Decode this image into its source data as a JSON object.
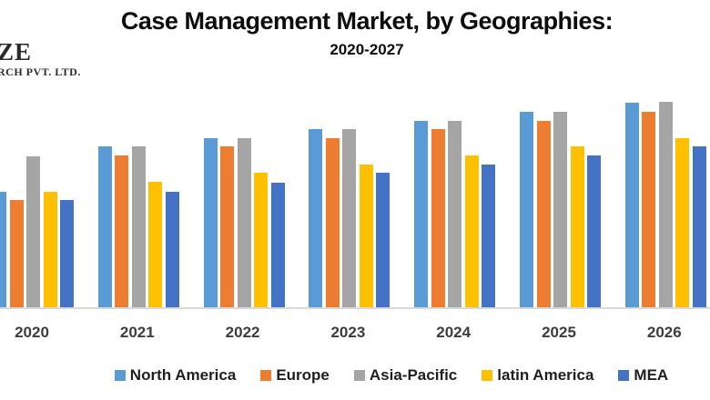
{
  "logo": {
    "line1": "ZE",
    "line2": "RCH PVT. LTD."
  },
  "header": {
    "title": "Case Management Market, by Geographies:",
    "subtitle": "2020-2027"
  },
  "colors": {
    "axis_line": "#d9d9d9",
    "title_text": "#0d0d0d",
    "axis_label_text": "#3d3d3d",
    "legend_text": "#1f1f1f",
    "background": "#ffffff"
  },
  "chart_data": {
    "type": "bar",
    "title": "Case Management Market, by Geographies:",
    "subtitle": "2020-2027",
    "categories": [
      "2020",
      "2021",
      "2022",
      "2023",
      "2024",
      "2025",
      "2026"
    ],
    "series": [
      {
        "name": "North America",
        "color": "#5B9BD5",
        "values": [
          127,
          177,
          186,
          196,
          205,
          215,
          225
        ]
      },
      {
        "name": "Europe",
        "color": "#ED7D31",
        "values": [
          118,
          167,
          177,
          186,
          196,
          205,
          215
        ]
      },
      {
        "name": "Asia-Pacific",
        "color": "#A5A5A5",
        "values": [
          166,
          177,
          186,
          196,
          205,
          215,
          226
        ]
      },
      {
        "name": "latin America",
        "color": "#FFC000",
        "values": [
          127,
          138,
          148,
          157,
          167,
          177,
          186
        ]
      },
      {
        "name": "MEA",
        "color": "#4472C4",
        "values": [
          118,
          127,
          137,
          148,
          157,
          167,
          177
        ]
      }
    ],
    "xlabel": "",
    "ylabel": "",
    "ylim": [
      0,
      240
    ],
    "y_axis_visible": false,
    "value_basis": "relative heights estimated from pixels; y-axis is cropped out of the image",
    "grid": false,
    "legend_position": "bottom",
    "notes": "leftmost 2020 North America bar is clipped by the left image edge"
  }
}
